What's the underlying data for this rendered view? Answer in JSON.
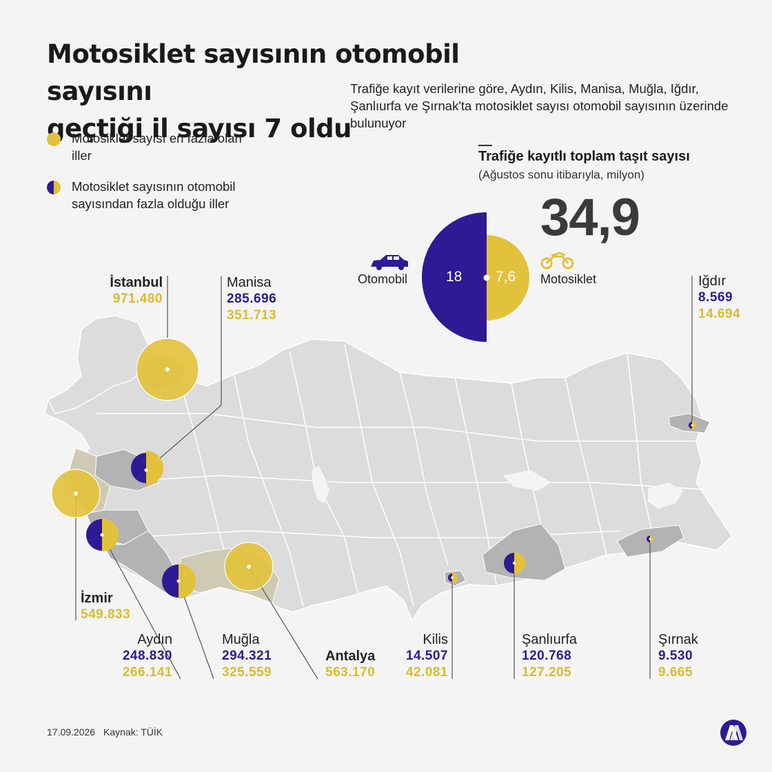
{
  "title_line1": "Motosiklet sayısının otomobil sayısını",
  "title_line2": "geçtiği il sayısı 7 oldu",
  "subtitle": "Trafiğe kayıt verilerine göre, Aydın, Kilis, Manisa, Muğla, Iğdır, Şanlıurfa ve Şırnak'ta motosiklet sayısı otomobil sayısının üzerinde bulunuyor",
  "legend": {
    "most_motorcycles": "Motosiklet sayısı en fazla olan iller",
    "more_than_cars": "Motosiklet sayısının otomobil sayısından fazla olduğu iller"
  },
  "total": {
    "title": "Trafiğe kayıtlı toplam taşıt sayısı",
    "subtitle": "(Ağustos sonu itibarıyla, milyon)",
    "value": "34,9",
    "car_label": "Otomobil",
    "car_value": "18",
    "moto_label": "Motosiklet",
    "moto_value": "7,6"
  },
  "colors": {
    "car": "#2e1a94",
    "motorcycle": "#e2c23a",
    "map_land": "#dcdcdc",
    "map_highlight": "#b3b3b3",
    "map_border": "#ffffff"
  },
  "provinces": {
    "istanbul": {
      "name": "İstanbul",
      "moto": "971.480"
    },
    "manisa": {
      "name": "Manisa",
      "car": "285.696",
      "moto": "351.713"
    },
    "izmir": {
      "name": "İzmir",
      "moto": "549.833"
    },
    "aydin": {
      "name": "Aydın",
      "car": "248.830",
      "moto": "266.141"
    },
    "mugla": {
      "name": "Muğla",
      "car": "294.321",
      "moto": "325.559"
    },
    "antalya": {
      "name": "Antalya",
      "moto": "563.170"
    },
    "kilis": {
      "name": "Kilis",
      "car": "14.507",
      "moto": "42.081"
    },
    "sanliurfa": {
      "name": "Şanlıurfa",
      "car": "120.768",
      "moto": "127.205"
    },
    "sirnak": {
      "name": "Şırnak",
      "car": "9.530",
      "moto": "9.665"
    },
    "igdir": {
      "name": "Iğdır",
      "car": "8.569",
      "moto": "14.694"
    }
  },
  "footer": {
    "date": "17.09.2026",
    "source": "Kaynak: TÜİK",
    "logo": "AA"
  },
  "icons": [
    "car-icon",
    "motorcycle-icon",
    "aa-logo"
  ]
}
